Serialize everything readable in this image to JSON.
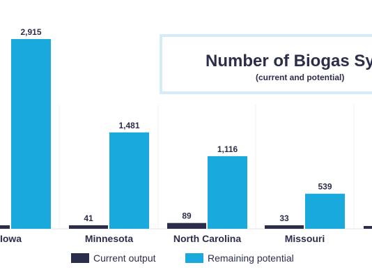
{
  "title_box": {
    "title": "Number of Biogas Syst",
    "subtitle": "(current and potential)"
  },
  "colors": {
    "current": "#2b2e4a",
    "remaining": "#19a9dc",
    "title_border": "#d3ecf7"
  },
  "legend": {
    "current_label": "Current output",
    "remaining_label": "Remaining potential"
  },
  "chart_data": {
    "type": "bar",
    "categories": [
      "Iowa",
      "Minnesota",
      "North Carolina",
      "Missouri"
    ],
    "series": [
      {
        "name": "Current output",
        "values": [
          null,
          41,
          89,
          33
        ]
      },
      {
        "name": "Remaining potential",
        "values": [
          2915,
          1481,
          1116,
          539
        ]
      }
    ],
    "data_labels": {
      "current": [
        "",
        "41",
        "89",
        "33"
      ],
      "remaining": [
        "2,915",
        "1,481",
        "1,116",
        "539"
      ]
    },
    "ylim": [
      0,
      2915
    ],
    "grid": true,
    "legend_position": "bottom"
  }
}
